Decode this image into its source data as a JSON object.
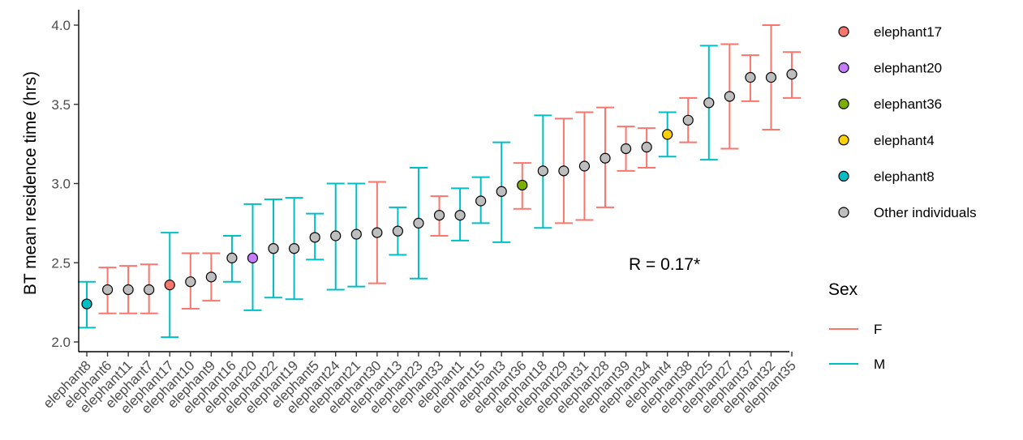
{
  "chart_data": {
    "type": "scatter",
    "subtype": "dot-with-error-bars",
    "title": "",
    "xlabel": "",
    "ylabel": "BT mean residence time (hrs)",
    "ylim": [
      2.0,
      4.05
    ],
    "yticks": [
      "2.0",
      "2.5",
      "3.0",
      "3.5",
      "4.0"
    ],
    "grid": false,
    "annotation": "R = 0.17*",
    "categories": [
      "elephant8",
      "elephant6",
      "elephant11",
      "elephant7",
      "elephant17",
      "elephant10",
      "elephant9",
      "elephant16",
      "elephant20",
      "elephant22",
      "elephant19",
      "elephant5",
      "elephant24",
      "elephant21",
      "elephant30",
      "elephant13",
      "elephant23",
      "elephant33",
      "elephant1",
      "elephant15",
      "elephant3",
      "elephant36",
      "elephant18",
      "elephant29",
      "elephant31",
      "elephant28",
      "elephant39",
      "elephant34",
      "elephant4",
      "elephant38",
      "elephant25",
      "elephant27",
      "elephant37",
      "elephant32",
      "elephant35"
    ],
    "mean": [
      2.24,
      2.33,
      2.33,
      2.33,
      2.36,
      2.38,
      2.41,
      2.53,
      2.53,
      2.59,
      2.59,
      2.66,
      2.67,
      2.68,
      2.69,
      2.7,
      2.75,
      2.8,
      2.8,
      2.89,
      2.95,
      2.99,
      3.08,
      3.08,
      3.11,
      3.16,
      3.22,
      3.23,
      3.31,
      3.4,
      3.51,
      3.55,
      3.67,
      3.67,
      3.69
    ],
    "lower": [
      2.09,
      2.18,
      2.18,
      2.18,
      2.03,
      2.21,
      2.26,
      2.38,
      2.2,
      2.28,
      2.27,
      2.52,
      2.33,
      2.35,
      2.37,
      2.55,
      2.4,
      2.67,
      2.64,
      2.75,
      2.63,
      2.84,
      2.72,
      2.75,
      2.77,
      2.85,
      3.08,
      3.1,
      3.17,
      3.26,
      3.15,
      3.22,
      3.52,
      3.34,
      3.54
    ],
    "upper": [
      2.38,
      2.47,
      2.48,
      2.49,
      2.69,
      2.56,
      2.56,
      2.67,
      2.87,
      2.9,
      2.91,
      2.81,
      3.0,
      3.0,
      3.01,
      2.85,
      3.1,
      2.92,
      2.97,
      3.04,
      3.26,
      3.13,
      3.43,
      3.41,
      3.45,
      3.48,
      3.36,
      3.35,
      3.45,
      3.54,
      3.87,
      3.88,
      3.81,
      4.0,
      3.83
    ],
    "sex": [
      "M",
      "F",
      "F",
      "F",
      "M",
      "F",
      "F",
      "M",
      "M",
      "M",
      "M",
      "M",
      "M",
      "M",
      "F",
      "M",
      "M",
      "F",
      "M",
      "M",
      "M",
      "F",
      "M",
      "F",
      "F",
      "F",
      "F",
      "F",
      "M",
      "F",
      "M",
      "F",
      "F",
      "F",
      "F"
    ],
    "highlight": [
      "elephant8",
      "Other individuals",
      "Other individuals",
      "Other individuals",
      "elephant17",
      "Other individuals",
      "Other individuals",
      "Other individuals",
      "elephant20",
      "Other individuals",
      "Other individuals",
      "Other individuals",
      "Other individuals",
      "Other individuals",
      "Other individuals",
      "Other individuals",
      "Other individuals",
      "Other individuals",
      "Other individuals",
      "Other individuals",
      "Other individuals",
      "elephant36",
      "Other individuals",
      "Other individuals",
      "Other individuals",
      "Other individuals",
      "Other individuals",
      "Other individuals",
      "elephant4",
      "Other individuals",
      "Other individuals",
      "Other individuals",
      "Other individuals",
      "Other individuals",
      "Other individuals"
    ],
    "legend_fill": {
      "items": [
        {
          "label": "elephant17",
          "color": "#f8766d"
        },
        {
          "label": "elephant20",
          "color": "#c77cff"
        },
        {
          "label": "elephant36",
          "color": "#7cae00"
        },
        {
          "label": "elephant4",
          "color": "#fdcf05"
        },
        {
          "label": "elephant8",
          "color": "#00bfc4"
        },
        {
          "label": "Other individuals",
          "color": "#bebebe"
        }
      ]
    },
    "legend_sex": {
      "title": "Sex",
      "items": [
        {
          "label": "F",
          "color": "#f8766d"
        },
        {
          "label": "M",
          "color": "#00bfc4"
        }
      ]
    },
    "legend_position": "right"
  }
}
